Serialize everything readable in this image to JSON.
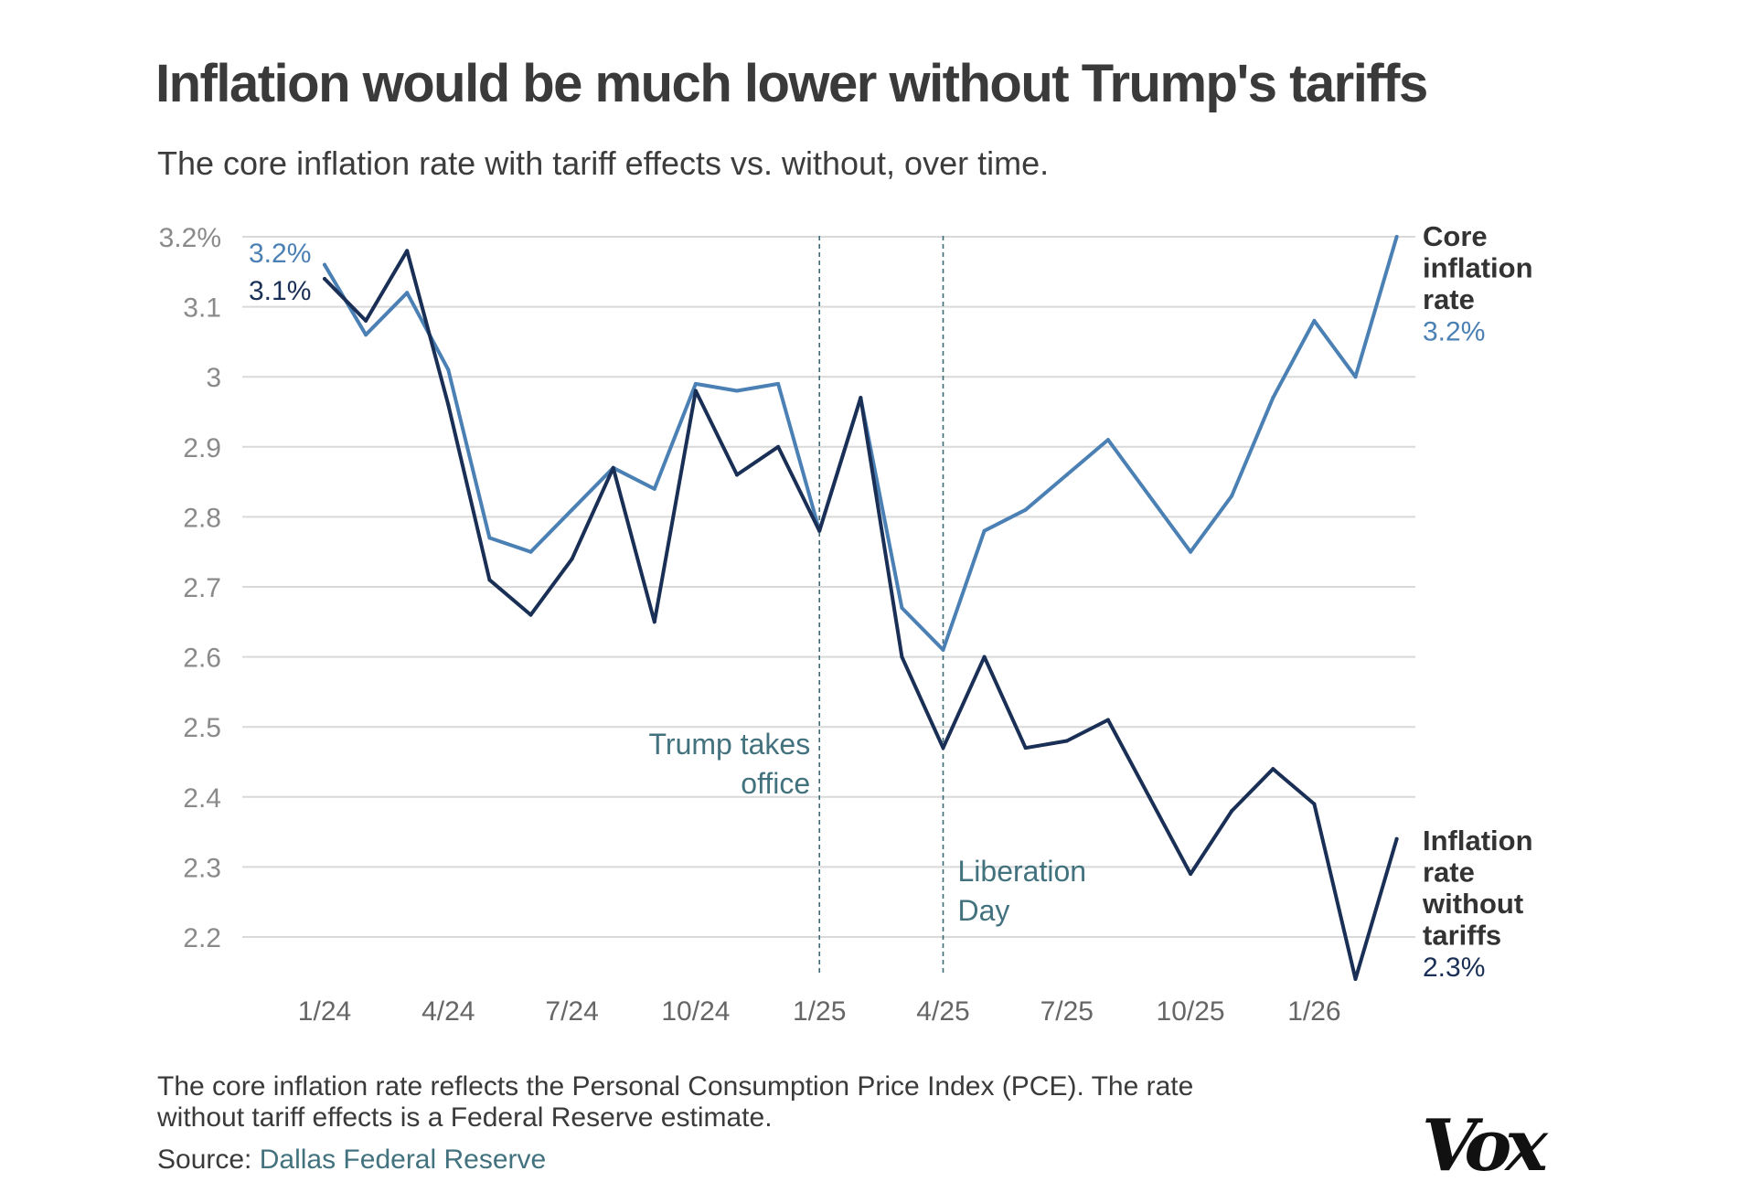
{
  "header": {
    "title": "Inflation would be much lower without Trump's tariffs",
    "subtitle": "The core inflation rate with tariff effects vs. without, over time."
  },
  "footer": {
    "note_line1": "The core inflation rate reflects the Personal Consumption Price Index (PCE). The rate",
    "note_line2": "without tariff effects is a Federal Reserve estimate.",
    "source_prefix": "Source: ",
    "source_link": "Dallas Federal Reserve",
    "logo": "Vox"
  },
  "colors": {
    "core": "#4b80b4",
    "without_tariffs": "#1a2f55",
    "grid": "#d9d9d9",
    "axis_text": "#8a8a8a",
    "annotation": "#43727f"
  },
  "chart_data": {
    "type": "line",
    "title": "Inflation would be much lower without Trump's tariffs",
    "subtitle": "The core inflation rate with tariff effects vs. without, over time.",
    "xlabel": "",
    "ylabel": "",
    "x": [
      "2024-01",
      "2024-02",
      "2024-03",
      "2024-04",
      "2024-05",
      "2024-06",
      "2024-07",
      "2024-08",
      "2024-09",
      "2024-10",
      "2024-11",
      "2024-12",
      "2025-01",
      "2025-02",
      "2025-03",
      "2025-04",
      "2025-05",
      "2025-06",
      "2025-07",
      "2025-08",
      "2025-09",
      "2025-10",
      "2025-11",
      "2025-12",
      "2026-01",
      "2026-02",
      "2026-03"
    ],
    "x_ticks": [
      {
        "x": "2024-01",
        "label": "1/24"
      },
      {
        "x": "2024-04",
        "label": "4/24"
      },
      {
        "x": "2024-07",
        "label": "7/24"
      },
      {
        "x": "2024-10",
        "label": "10/24"
      },
      {
        "x": "2025-01",
        "label": "1/25"
      },
      {
        "x": "2025-04",
        "label": "4/25"
      },
      {
        "x": "2025-07",
        "label": "7/25"
      },
      {
        "x": "2025-10",
        "label": "10/25"
      },
      {
        "x": "2026-01",
        "label": "1/26"
      }
    ],
    "y_ticks": [
      {
        "value": 3.2,
        "label": "3.2%"
      },
      {
        "value": 3.1,
        "label": "3.1"
      },
      {
        "value": 3.0,
        "label": "3"
      },
      {
        "value": 2.9,
        "label": "2.9"
      },
      {
        "value": 2.8,
        "label": "2.8"
      },
      {
        "value": 2.7,
        "label": "2.7"
      },
      {
        "value": 2.6,
        "label": "2.6"
      },
      {
        "value": 2.5,
        "label": "2.5"
      },
      {
        "value": 2.4,
        "label": "2.4"
      },
      {
        "value": 2.3,
        "label": "2.3"
      },
      {
        "value": 2.2,
        "label": "2.2"
      }
    ],
    "ylim": [
      2.14,
      3.22
    ],
    "grid": true,
    "series": [
      {
        "name": "Core inflation rate",
        "end_label": [
          "Core",
          "inflation",
          "rate"
        ],
        "end_value_label": "3.2%",
        "start_value_label": "3.2%",
        "color": "#4b80b4",
        "values": [
          3.16,
          3.06,
          3.12,
          3.01,
          2.77,
          2.75,
          2.81,
          2.87,
          2.84,
          2.99,
          2.98,
          2.99,
          2.78,
          2.97,
          2.67,
          2.61,
          2.78,
          2.81,
          2.86,
          2.91,
          2.83,
          2.75,
          2.83,
          2.97,
          3.08,
          3.0,
          3.2
        ]
      },
      {
        "name": "Inflation rate without tariffs",
        "end_label": [
          "Inflation",
          "rate",
          "without",
          "tariffs"
        ],
        "end_value_label": "2.3%",
        "start_value_label": "3.1%",
        "color": "#1a2f55",
        "values": [
          3.14,
          3.08,
          3.18,
          2.96,
          2.71,
          2.66,
          2.74,
          2.87,
          2.65,
          2.98,
          2.86,
          2.9,
          2.78,
          2.97,
          2.6,
          2.47,
          2.6,
          2.47,
          2.48,
          2.51,
          2.4,
          2.29,
          2.38,
          2.44,
          2.39,
          2.14,
          2.34
        ]
      }
    ],
    "annotations": [
      {
        "x": "2025-01",
        "lines": [
          "Trump takes",
          "office"
        ]
      },
      {
        "x": "2025-04",
        "lines": [
          "Liberation",
          "Day"
        ]
      }
    ]
  }
}
